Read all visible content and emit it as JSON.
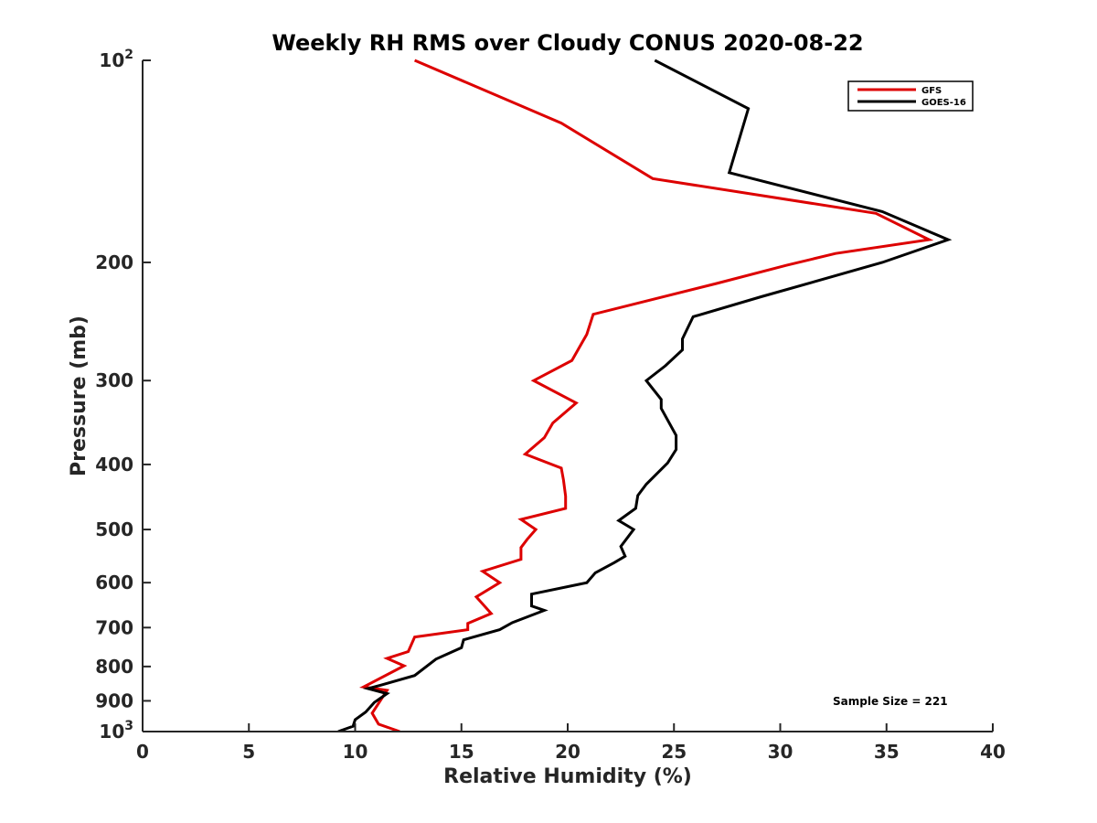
{
  "chart_data": {
    "type": "line",
    "title": "Weekly RH RMS over Cloudy CONUS 2020-08-22",
    "xlabel": "Relative Humidity (%)",
    "ylabel": "Pressure (mb)",
    "xlim": [
      0,
      40
    ],
    "ylim": [
      100,
      1000
    ],
    "y_scale": "log",
    "y_reversed": true,
    "x_ticks": [
      "0",
      "5",
      "10",
      "15",
      "20",
      "25",
      "30",
      "35",
      "40"
    ],
    "y_ticks": [
      {
        "value": 100,
        "base": "10",
        "exp": "2"
      },
      {
        "value": 200,
        "label": "200"
      },
      {
        "value": 300,
        "label": "300"
      },
      {
        "value": 400,
        "label": "400"
      },
      {
        "value": 500,
        "label": "500"
      },
      {
        "value": 600,
        "label": "600"
      },
      {
        "value": 700,
        "label": "700"
      },
      {
        "value": 800,
        "label": "800"
      },
      {
        "value": 900,
        "label": "900"
      },
      {
        "value": 1000,
        "base": "10",
        "exp": "3"
      }
    ],
    "legend": {
      "position": "top-right"
    },
    "annotation": "Sample Size = 221",
    "series": [
      {
        "name": "GFS",
        "color": "#dd0000",
        "points": [
          [
            12.8,
            100
          ],
          [
            19.7,
            124
          ],
          [
            24.0,
            150
          ],
          [
            34.5,
            169
          ],
          [
            37.0,
            185
          ],
          [
            32.6,
            194
          ],
          [
            30.3,
            202
          ],
          [
            27.0,
            215
          ],
          [
            21.2,
            239
          ],
          [
            20.9,
            256
          ],
          [
            20.2,
            280
          ],
          [
            18.4,
            300
          ],
          [
            20.4,
            324
          ],
          [
            19.3,
            347
          ],
          [
            18.9,
            365
          ],
          [
            18.0,
            386
          ],
          [
            19.7,
            405
          ],
          [
            19.8,
            422
          ],
          [
            19.9,
            446
          ],
          [
            19.9,
            465
          ],
          [
            17.8,
            483
          ],
          [
            18.5,
            500
          ],
          [
            18.1,
            517
          ],
          [
            17.8,
            532
          ],
          [
            17.8,
            554
          ],
          [
            16.0,
            577
          ],
          [
            16.8,
            600
          ],
          [
            15.7,
            630
          ],
          [
            16.4,
            667
          ],
          [
            15.3,
            690
          ],
          [
            15.3,
            705
          ],
          [
            12.8,
            723
          ],
          [
            12.5,
            760
          ],
          [
            11.5,
            778
          ],
          [
            12.3,
            798
          ],
          [
            10.4,
            858
          ],
          [
            11.5,
            868
          ],
          [
            10.8,
            939
          ],
          [
            11.1,
            975
          ],
          [
            12.1,
            1000
          ]
        ]
      },
      {
        "name": "GOES-16",
        "color": "#000000",
        "points": [
          [
            24.1,
            100
          ],
          [
            28.5,
            118
          ],
          [
            27.6,
            147
          ],
          [
            34.8,
            168
          ],
          [
            37.9,
            185
          ],
          [
            34.8,
            200
          ],
          [
            29.1,
            225
          ],
          [
            25.9,
            241
          ],
          [
            25.4,
            260
          ],
          [
            25.4,
            270
          ],
          [
            24.6,
            285
          ],
          [
            23.7,
            300
          ],
          [
            24.4,
            320
          ],
          [
            24.4,
            330
          ],
          [
            25.1,
            362
          ],
          [
            25.1,
            380
          ],
          [
            24.7,
            398
          ],
          [
            23.7,
            428
          ],
          [
            23.3,
            445
          ],
          [
            23.2,
            465
          ],
          [
            22.4,
            485
          ],
          [
            23.1,
            500
          ],
          [
            22.5,
            530
          ],
          [
            22.7,
            548
          ],
          [
            22.2,
            560
          ],
          [
            21.3,
            580
          ],
          [
            20.9,
            600
          ],
          [
            18.3,
            624
          ],
          [
            18.3,
            650
          ],
          [
            18.9,
            660
          ],
          [
            17.4,
            688
          ],
          [
            16.8,
            705
          ],
          [
            15.1,
            730
          ],
          [
            15.0,
            750
          ],
          [
            13.8,
            780
          ],
          [
            12.8,
            825
          ],
          [
            11.2,
            853
          ],
          [
            10.6,
            863
          ],
          [
            11.5,
            878
          ],
          [
            10.9,
            905
          ],
          [
            10.5,
            935
          ],
          [
            10.0,
            960
          ],
          [
            9.9,
            982
          ],
          [
            9.2,
            1000
          ]
        ]
      }
    ]
  }
}
